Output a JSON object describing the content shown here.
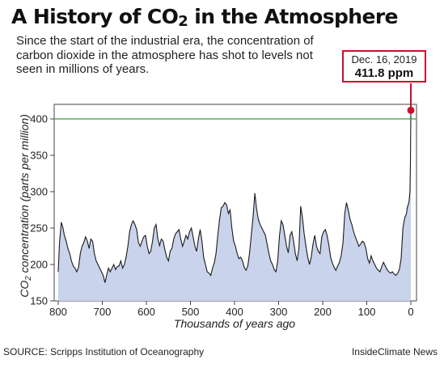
{
  "header": {
    "title_main": "A History of CO",
    "title_sub": "2",
    "title_end": " in the Atmosphere",
    "subtitle": "Since the start of the industrial era, the concentration of carbon dioxide in the atmosphere has shot to levels not seen in millions of years."
  },
  "callout": {
    "date": "Dec. 16, 2019",
    "value": "411.8 ppm"
  },
  "footer": {
    "source": "SOURCE: Scripps Institution of Oceanography",
    "credit": "InsideClimate News"
  },
  "colors": {
    "fill": "#c9d3ec",
    "line": "#1a1a1a",
    "reference_line": "#3a9a3a",
    "accent": "#c8102e"
  },
  "chart_data": {
    "type": "area",
    "ylabel_main": "CO",
    "ylabel_sub": "2",
    "ylabel_end": " concentration (parts per million)",
    "xlabel": "Thousands of years ago",
    "xlim": [
      800,
      0
    ],
    "ylim": [
      150,
      420
    ],
    "x_ticks": [
      800,
      700,
      600,
      500,
      400,
      300,
      200,
      100,
      0
    ],
    "y_ticks": [
      150,
      200,
      250,
      300,
      350,
      400
    ],
    "reference_y": 400,
    "latest_point": {
      "x": 0,
      "y": 411.8
    },
    "grid": false,
    "series": [
      {
        "x": [
          800,
          797,
          793,
          790,
          786,
          782,
          778,
          774,
          770,
          766,
          762,
          758,
          754,
          750,
          746,
          742,
          738,
          734,
          730,
          726,
          722,
          718,
          714,
          710,
          706,
          702,
          698,
          694,
          690,
          686,
          682,
          678,
          674,
          670,
          666,
          662,
          658,
          654,
          650,
          646,
          642,
          638,
          634,
          630,
          626,
          622,
          618,
          614,
          610,
          606,
          602,
          598,
          594,
          590,
          586,
          582,
          578,
          574,
          570,
          566,
          562,
          558,
          554,
          550,
          546,
          542,
          538,
          534,
          530,
          526,
          522,
          518,
          514,
          510,
          506,
          502,
          498,
          494,
          490,
          486,
          482,
          478,
          474,
          470,
          466,
          462,
          458,
          454,
          450,
          446,
          442,
          438,
          434,
          430,
          426,
          422,
          418,
          414,
          410,
          406,
          402,
          398,
          394,
          390,
          386,
          382,
          378,
          374,
          370,
          366,
          362,
          358,
          354,
          350,
          346,
          342,
          338,
          334,
          330,
          326,
          322,
          318,
          314,
          310,
          306,
          302,
          298,
          294,
          290,
          286,
          282,
          278,
          274,
          270,
          266,
          262,
          258,
          254,
          250,
          246,
          242,
          238,
          234,
          230,
          226,
          222,
          218,
          214,
          210,
          206,
          202,
          198,
          194,
          190,
          186,
          182,
          178,
          174,
          170,
          166,
          162,
          158,
          154,
          150,
          146,
          142,
          138,
          134,
          130,
          126,
          122,
          118,
          114,
          110,
          106,
          102,
          98,
          94,
          90,
          86,
          82,
          78,
          74,
          70,
          66,
          62,
          58,
          54,
          50,
          46,
          42,
          38,
          34,
          30,
          26,
          22,
          18,
          14,
          10,
          8,
          6,
          4,
          2,
          1,
          0
        ],
        "y": [
          190,
          230,
          258,
          252,
          240,
          232,
          222,
          215,
          205,
          198,
          195,
          190,
          196,
          215,
          225,
          230,
          238,
          232,
          222,
          235,
          232,
          215,
          205,
          200,
          195,
          190,
          185,
          175,
          185,
          195,
          190,
          195,
          200,
          193,
          197,
          198,
          205,
          195,
          200,
          210,
          225,
          245,
          255,
          260,
          255,
          248,
          230,
          225,
          232,
          238,
          240,
          225,
          215,
          218,
          232,
          250,
          255,
          235,
          226,
          235,
          232,
          220,
          210,
          205,
          218,
          222,
          235,
          242,
          245,
          248,
          235,
          225,
          232,
          240,
          235,
          245,
          250,
          238,
          225,
          218,
          235,
          248,
          232,
          210,
          200,
          190,
          188,
          185,
          195,
          202,
          215,
          240,
          262,
          278,
          280,
          285,
          282,
          270,
          275,
          250,
          232,
          225,
          215,
          208,
          210,
          205,
          196,
          192,
          198,
          215,
          240,
          265,
          298,
          276,
          262,
          255,
          250,
          245,
          240,
          228,
          215,
          205,
          200,
          193,
          190,
          205,
          240,
          260,
          255,
          240,
          225,
          216,
          240,
          245,
          232,
          215,
          205,
          222,
          280,
          265,
          242,
          225,
          210,
          200,
          210,
          228,
          240,
          225,
          218,
          215,
          238,
          245,
          248,
          240,
          227,
          210,
          202,
          196,
          192,
          198,
          203,
          212,
          230,
          270,
          285,
          275,
          262,
          255,
          245,
          238,
          232,
          225,
          228,
          232,
          230,
          222,
          208,
          202,
          212,
          205,
          200,
          195,
          192,
          190,
          197,
          203,
          198,
          193,
          190,
          188,
          190,
          187,
          185,
          188,
          193,
          208,
          250,
          264,
          270,
          278,
          282,
          287,
          300,
          340,
          411.8
        ]
      }
    ]
  }
}
